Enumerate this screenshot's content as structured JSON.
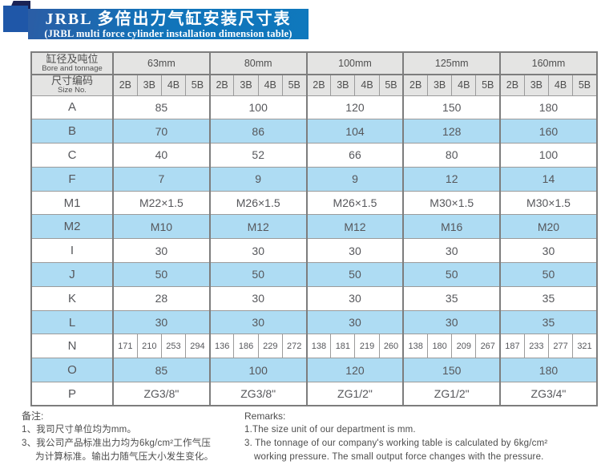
{
  "title": {
    "zh": "JRBL 多倍出力气缸安装尺寸表",
    "en": "(JRBL multi force cylinder installation dimension table)"
  },
  "colors": {
    "banner_blue": "#1173b9",
    "ribbon_blue": "#1f57a8",
    "ribbon_fold_navy": "#1a2355",
    "header_gray": "#e4e4e3",
    "row_shade_blue": "#aedcf3",
    "border_gray": "#8a8a8a",
    "text_gray": "#56575b"
  },
  "table": {
    "corner": {
      "row1_zh": "缸径及吨位",
      "row1_en": "Bore and tonnage",
      "row2_zh": "尺寸编码",
      "row2_en": "Size No."
    },
    "groups": [
      "63mm",
      "80mm",
      "100mm",
      "125mm",
      "160mm"
    ],
    "sub_columns": [
      "2B",
      "3B",
      "4B",
      "5B"
    ],
    "rows": [
      {
        "label": "A",
        "type": "merged",
        "shade": false,
        "values": [
          "85",
          "100",
          "120",
          "150",
          "180"
        ]
      },
      {
        "label": "B",
        "type": "merged",
        "shade": true,
        "values": [
          "70",
          "86",
          "104",
          "128",
          "160"
        ]
      },
      {
        "label": "C",
        "type": "merged",
        "shade": false,
        "values": [
          "40",
          "52",
          "66",
          "80",
          "100"
        ]
      },
      {
        "label": "F",
        "type": "merged",
        "shade": true,
        "values": [
          "7",
          "9",
          "9",
          "12",
          "14"
        ]
      },
      {
        "label": "M1",
        "type": "merged",
        "shade": false,
        "values": [
          "M22×1.5",
          "M26×1.5",
          "M26×1.5",
          "M30×1.5",
          "M30×1.5"
        ]
      },
      {
        "label": "M2",
        "type": "merged",
        "shade": true,
        "values": [
          "M10",
          "M12",
          "M12",
          "M16",
          "M20"
        ]
      },
      {
        "label": "I",
        "type": "merged",
        "shade": false,
        "values": [
          "30",
          "30",
          "30",
          "30",
          "30"
        ]
      },
      {
        "label": "J",
        "type": "merged",
        "shade": true,
        "values": [
          "50",
          "50",
          "50",
          "50",
          "50"
        ]
      },
      {
        "label": "K",
        "type": "merged",
        "shade": false,
        "values": [
          "28",
          "30",
          "30",
          "35",
          "35"
        ]
      },
      {
        "label": "L",
        "type": "merged",
        "shade": true,
        "values": [
          "30",
          "30",
          "30",
          "30",
          "35"
        ]
      },
      {
        "label": "N",
        "type": "split",
        "shade": false,
        "values": [
          [
            "171",
            "210",
            "253",
            "294"
          ],
          [
            "136",
            "186",
            "229",
            "272"
          ],
          [
            "138",
            "181",
            "219",
            "260"
          ],
          [
            "138",
            "180",
            "209",
            "267"
          ],
          [
            "187",
            "233",
            "277",
            "321"
          ]
        ]
      },
      {
        "label": "O",
        "type": "merged",
        "shade": true,
        "values": [
          "85",
          "100",
          "120",
          "150",
          "180"
        ]
      },
      {
        "label": "P",
        "type": "merged",
        "shade": false,
        "values": [
          "ZG3/8\"",
          "ZG3/8\"",
          "ZG1/2\"",
          "ZG1/2\"",
          "ZG3/4\""
        ]
      }
    ]
  },
  "notes_zh": {
    "heading": "备注:",
    "lines": [
      {
        "text": "1、我司尺寸单位均为mm。",
        "indent": false
      },
      {
        "text": "3、我公司产品标准出力均为6kg/cm²工作气压",
        "indent": false
      },
      {
        "text": "为计算标准。输出力随气压大小发生变化。",
        "indent": true
      }
    ]
  },
  "notes_en": {
    "heading": "Remarks:",
    "lines": [
      {
        "text": "1.The size unit of our department is mm.",
        "indent": false
      },
      {
        "text": "3. The tonnage of our company's working table is calculated by 6kg/cm²",
        "indent": false
      },
      {
        "text": "working pressure. The small output force changes with the pressure.",
        "indent": true
      }
    ]
  }
}
